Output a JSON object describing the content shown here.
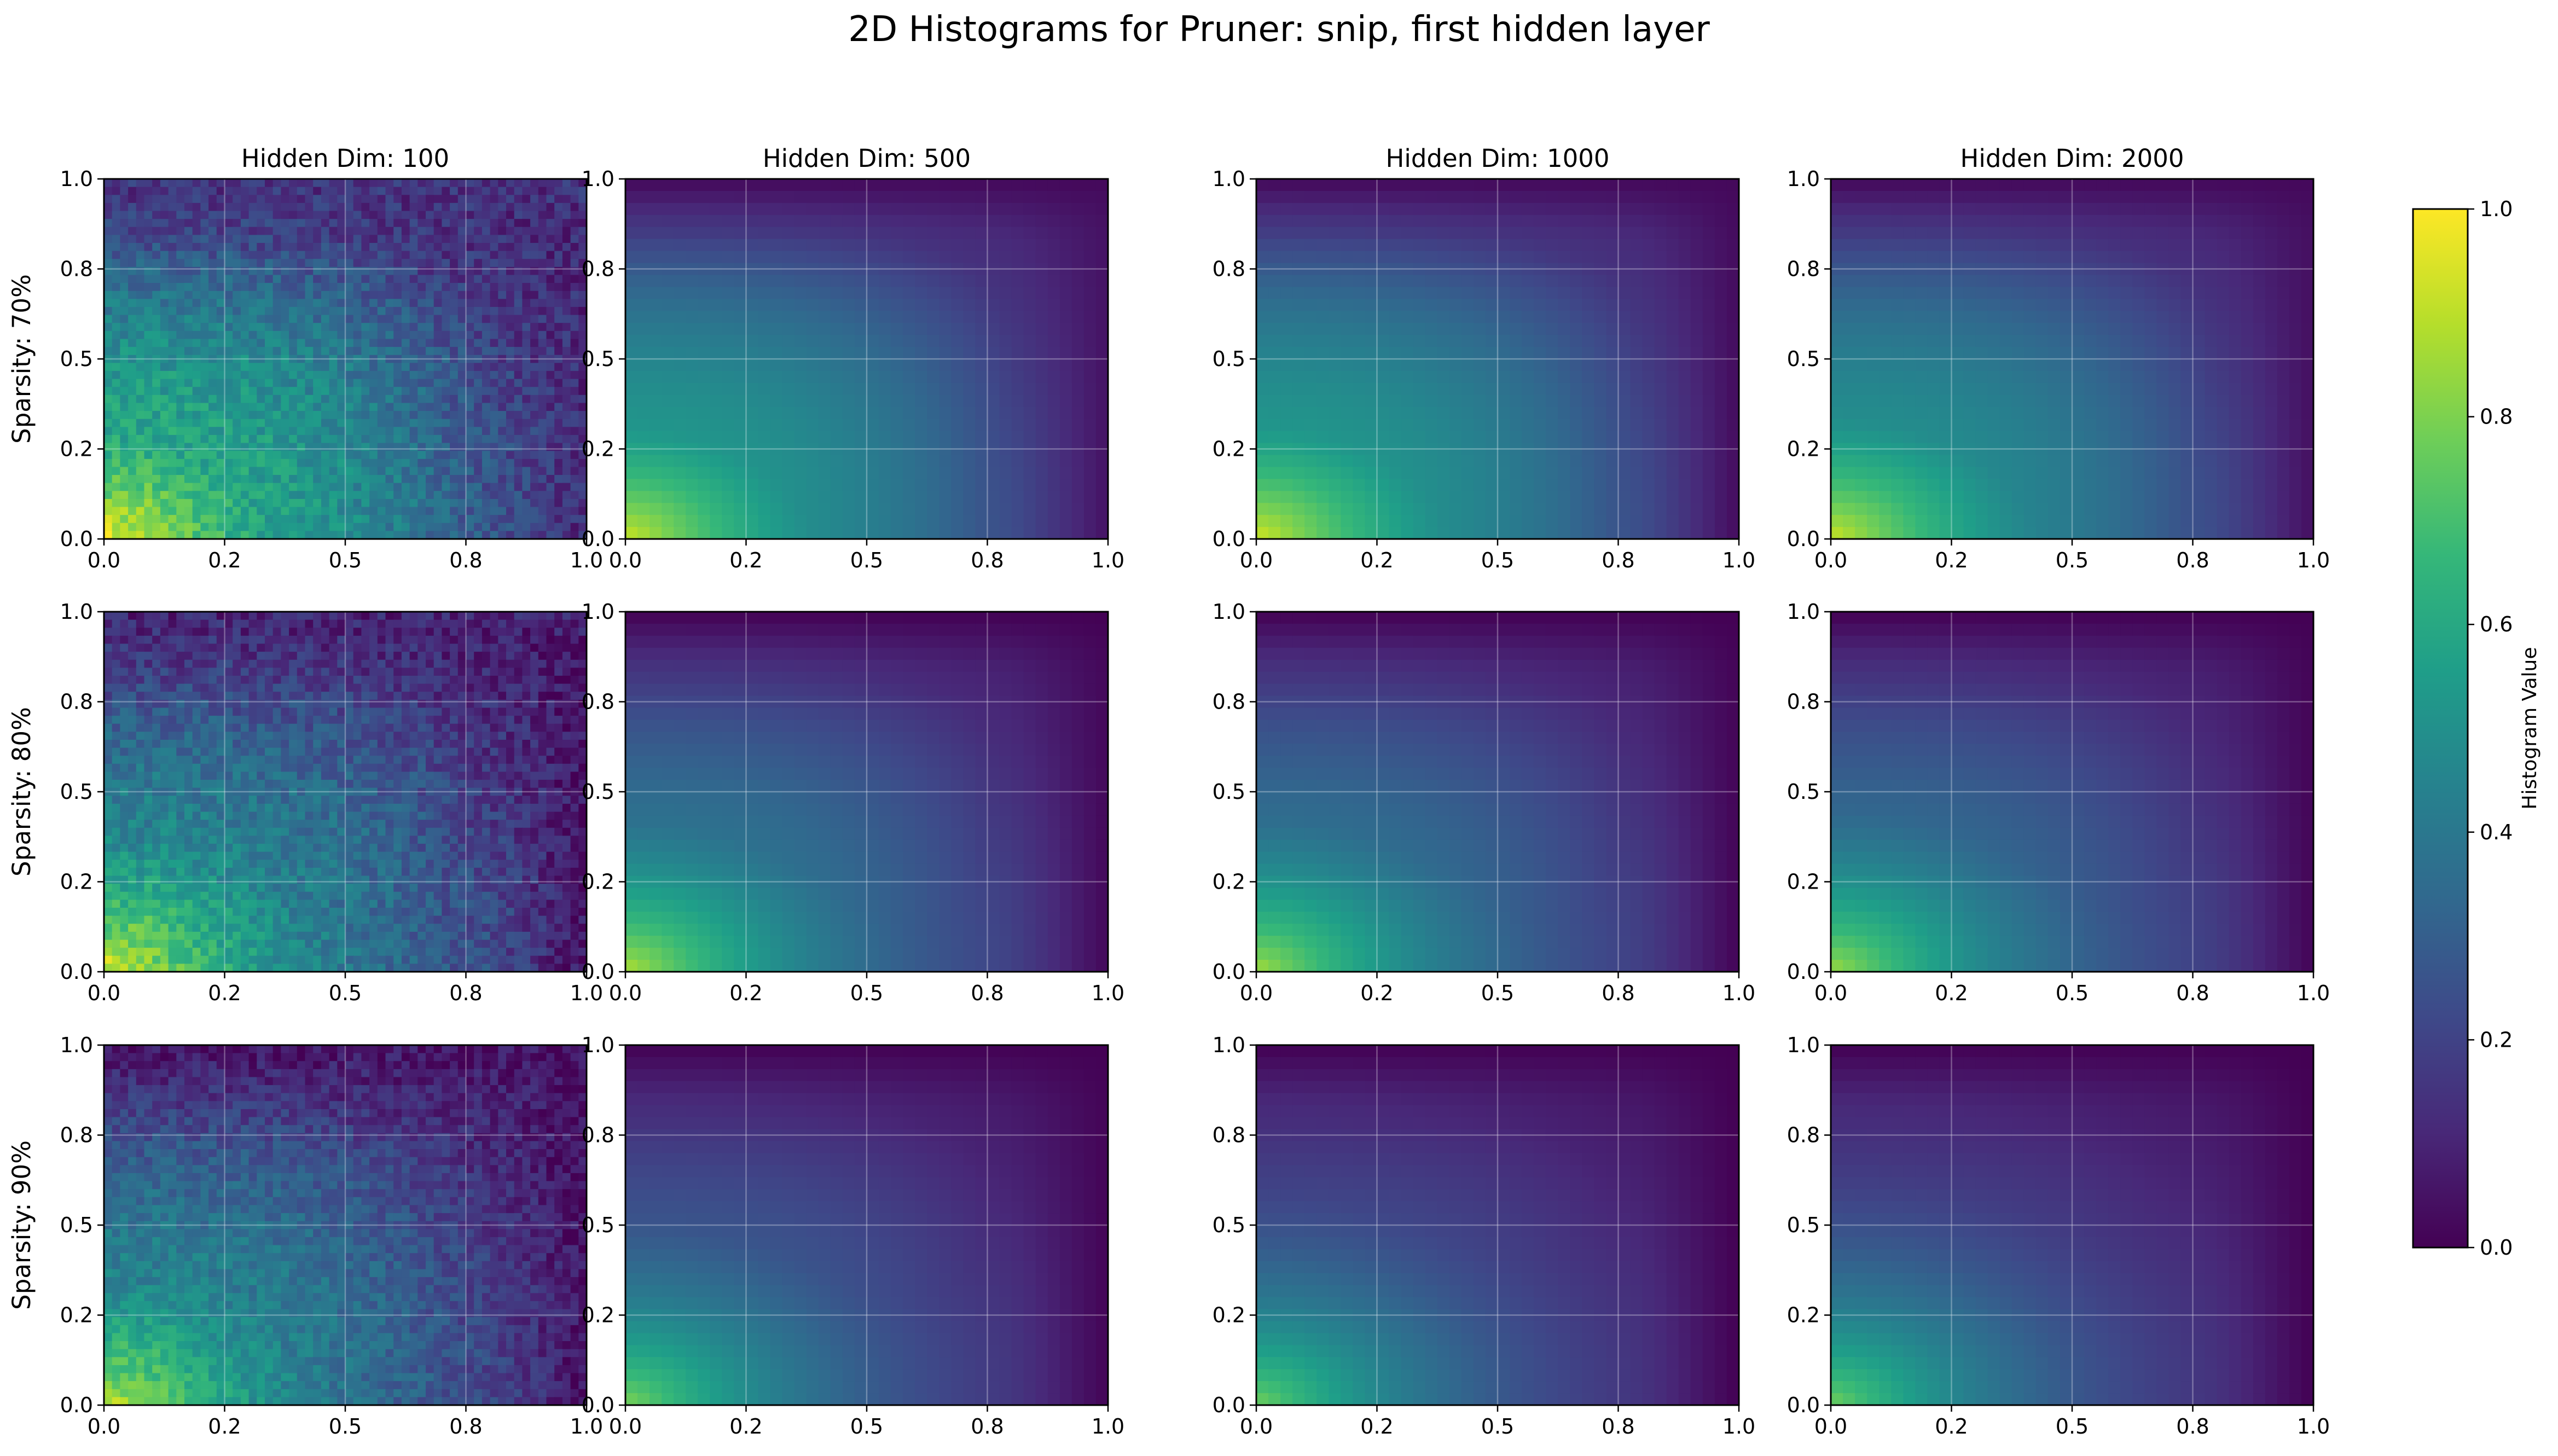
{
  "figure": {
    "title": "2D Histograms for Pruner: snip, first hidden layer"
  },
  "colors": {
    "colormap": "viridis",
    "colormap_stops": [
      "#440154",
      "#482878",
      "#3e4989",
      "#31688e",
      "#26828e",
      "#1f9e89",
      "#35b779",
      "#6ece58",
      "#b5de2b",
      "#fde725"
    ],
    "grid": "#ffffff",
    "axes_edge": "#000000",
    "background": "#ffffff"
  },
  "chart_data": {
    "type": "heatmap",
    "title": "2D Histograms for Pruner: snip, first hidden layer",
    "columns": [
      "Hidden Dim: 100",
      "Hidden Dim: 500",
      "Hidden Dim: 1000",
      "Hidden Dim: 2000"
    ],
    "rows": [
      "Sparsity: 70%",
      "Sparsity: 80%",
      "Sparsity: 90%"
    ],
    "xlim": [
      0.0,
      1.0
    ],
    "ylim": [
      0.0,
      1.0
    ],
    "xticks": [
      0.0,
      0.25,
      0.5,
      0.75,
      1.0
    ],
    "xtick_labels": [
      "0.0",
      "0.2",
      "0.5",
      "0.8",
      "1.0"
    ],
    "yticks": [
      0.0,
      0.25,
      0.5,
      0.75,
      1.0
    ],
    "ytick_labels": [
      "0.0",
      "0.2",
      "0.5",
      "0.8",
      "1.0"
    ],
    "grid": true,
    "colorbar": {
      "label": "Histogram Value",
      "range": [
        0.0,
        1.0
      ],
      "ticks": [
        0.0,
        0.2,
        0.4,
        0.6,
        0.8,
        1.0
      ],
      "tick_labels": [
        "0.0",
        "0.2",
        "0.4",
        "0.6",
        "0.8",
        "1.0"
      ],
      "placement": "right"
    },
    "panel_summaries": [
      [
        {
          "value_at_origin": 0.97,
          "value_mid": 0.62,
          "value_right_edge": 0.12,
          "value_top_edge": 0.15,
          "noise": 0.09
        },
        {
          "value_at_origin": 0.92,
          "value_mid": 0.55,
          "value_right_edge": 0.05,
          "value_top_edge": 0.02,
          "noise": 0.0
        },
        {
          "value_at_origin": 0.93,
          "value_mid": 0.55,
          "value_right_edge": 0.03,
          "value_top_edge": 0.02,
          "noise": 0.0
        },
        {
          "value_at_origin": 0.92,
          "value_mid": 0.52,
          "value_right_edge": 0.04,
          "value_top_edge": 0.02,
          "noise": 0.0
        }
      ],
      [
        {
          "value_at_origin": 0.95,
          "value_mid": 0.5,
          "value_right_edge": 0.05,
          "value_top_edge": 0.1,
          "noise": 0.09
        },
        {
          "value_at_origin": 0.88,
          "value_mid": 0.42,
          "value_right_edge": 0.02,
          "value_top_edge": 0.0,
          "noise": 0.0
        },
        {
          "value_at_origin": 0.86,
          "value_mid": 0.4,
          "value_right_edge": 0.01,
          "value_top_edge": 0.0,
          "noise": 0.0
        },
        {
          "value_at_origin": 0.85,
          "value_mid": 0.38,
          "value_right_edge": 0.01,
          "value_top_edge": 0.0,
          "noise": 0.0
        }
      ],
      [
        {
          "value_at_origin": 0.9,
          "value_mid": 0.48,
          "value_right_edge": 0.05,
          "value_top_edge": 0.05,
          "noise": 0.08
        },
        {
          "value_at_origin": 0.8,
          "value_mid": 0.32,
          "value_right_edge": 0.01,
          "value_top_edge": 0.0,
          "noise": 0.0
        },
        {
          "value_at_origin": 0.78,
          "value_mid": 0.28,
          "value_right_edge": 0.0,
          "value_top_edge": 0.0,
          "noise": 0.0
        },
        {
          "value_at_origin": 0.78,
          "value_mid": 0.26,
          "value_right_edge": 0.0,
          "value_top_edge": 0.0,
          "noise": 0.0
        }
      ]
    ]
  }
}
